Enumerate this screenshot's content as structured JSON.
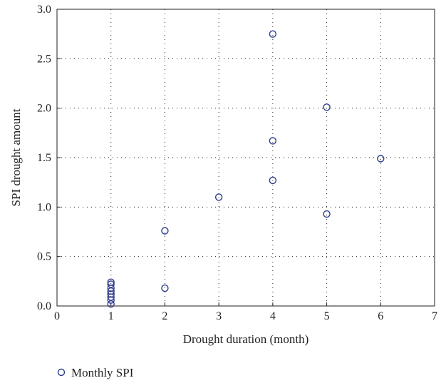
{
  "chart_data": {
    "type": "scatter",
    "title": "",
    "xlabel": "Drought duration (month)",
    "ylabel": "SPI drought amount",
    "xlim": [
      0,
      7
    ],
    "ylim": [
      0.0,
      3.0
    ],
    "xticks": [
      "0",
      "1",
      "2",
      "3",
      "4",
      "5",
      "6",
      "7"
    ],
    "yticks": [
      "0.0",
      "0.5",
      "1.0",
      "1.5",
      "2.0",
      "2.5",
      "3.0"
    ],
    "grid": true,
    "legend": "bottom-left",
    "series": [
      {
        "name": "Monthly SPI",
        "color": "#2e3d8f",
        "marker": "open-circle",
        "points": [
          {
            "x": 1,
            "y": 0.02
          },
          {
            "x": 1,
            "y": 0.06
          },
          {
            "x": 1,
            "y": 0.09
          },
          {
            "x": 1,
            "y": 0.12
          },
          {
            "x": 1,
            "y": 0.15
          },
          {
            "x": 1,
            "y": 0.18
          },
          {
            "x": 1,
            "y": 0.22
          },
          {
            "x": 1,
            "y": 0.24
          },
          {
            "x": 2,
            "y": 0.18
          },
          {
            "x": 2,
            "y": 0.76
          },
          {
            "x": 3,
            "y": 1.1
          },
          {
            "x": 4,
            "y": 1.27
          },
          {
            "x": 4,
            "y": 1.67
          },
          {
            "x": 4,
            "y": 2.75
          },
          {
            "x": 5,
            "y": 0.93
          },
          {
            "x": 5,
            "y": 2.01
          },
          {
            "x": 6,
            "y": 1.49
          }
        ]
      }
    ]
  }
}
